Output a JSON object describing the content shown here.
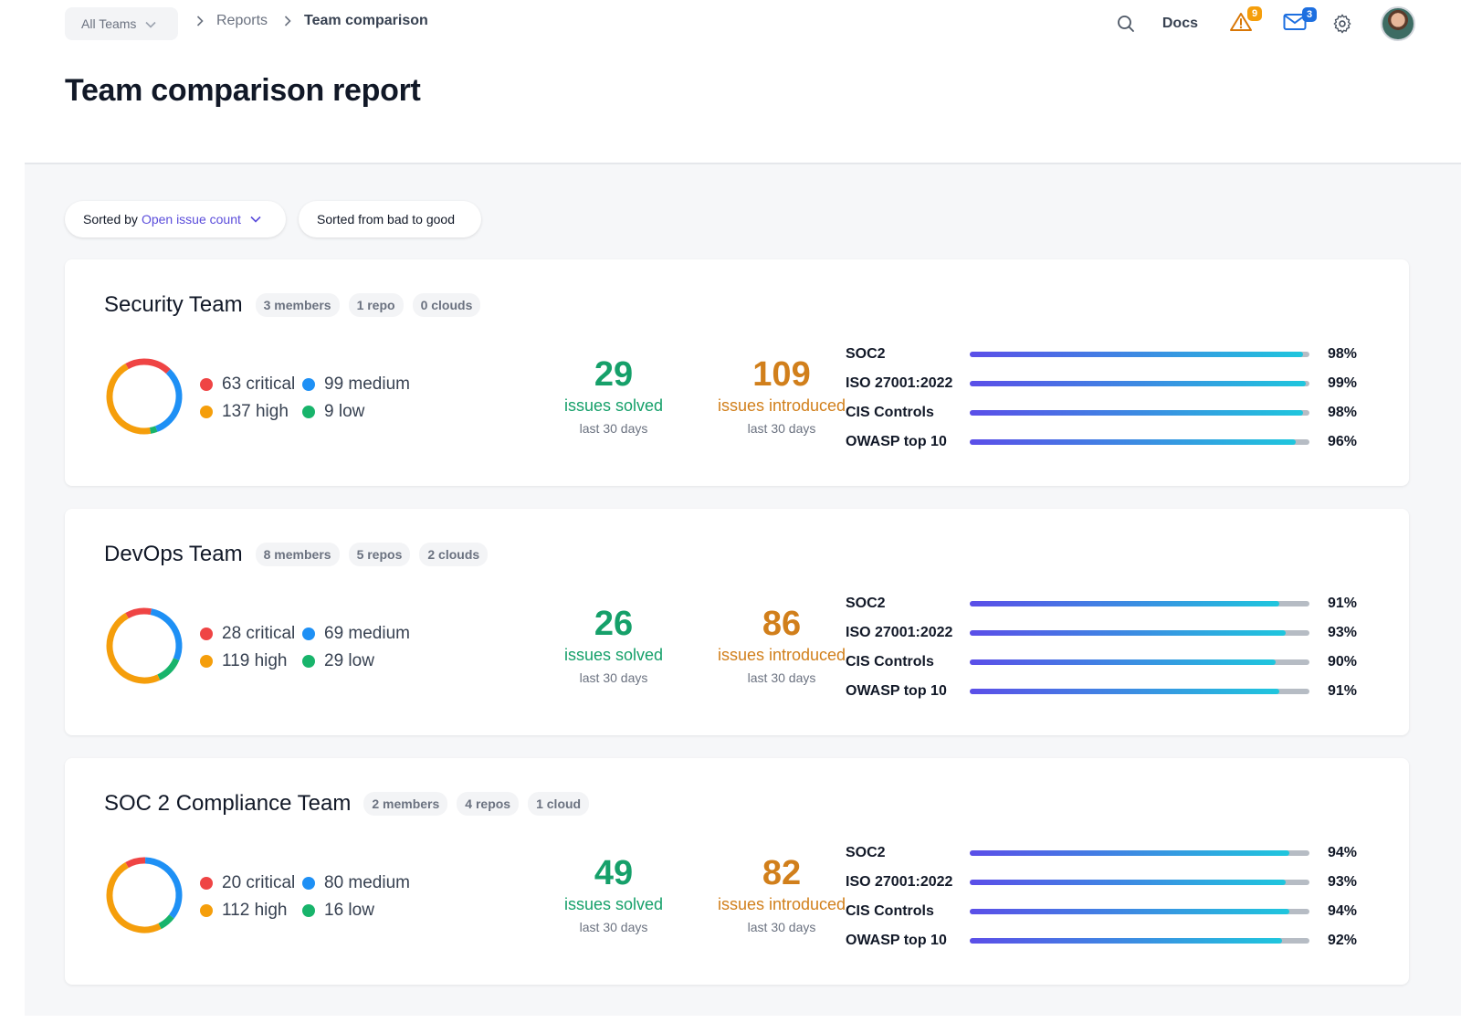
{
  "header": {
    "team_selector": "All Teams",
    "breadcrumbs": [
      "Reports",
      "Team comparison"
    ],
    "docs_label": "Docs",
    "alerts_count": "9",
    "messages_count": "3"
  },
  "page": {
    "title": "Team comparison report"
  },
  "controls": {
    "sort_prefix": "Sorted by",
    "sort_value": "Open issue count",
    "order_label": "Sorted from bad to good"
  },
  "colors": {
    "critical": "#ef4444",
    "high": "#f59e0b",
    "medium": "#1e90f5",
    "low": "#18b46b",
    "solved": "#16a06a",
    "introduced": "#d17f1b",
    "accent": "#5b4ddb"
  },
  "teams": [
    {
      "name": "Security Team",
      "chips": [
        "3 members",
        "1 repo",
        "0 clouds"
      ],
      "critical_label": "63 critical",
      "medium_label": "99 medium",
      "high_label": "137 high",
      "low_label": "9 low",
      "counts": {
        "critical": 63,
        "medium": 99,
        "high": 137,
        "low": 9
      },
      "solved": "29",
      "solved_label": "issues solved",
      "solved_sub": "last 30 days",
      "introduced": "109",
      "introduced_label": "issues introduced",
      "introduced_sub": "last 30 days",
      "compliance": [
        {
          "name": "SOC2",
          "pct": "98%",
          "value": 98
        },
        {
          "name": "ISO 27001:2022",
          "pct": "99%",
          "value": 99
        },
        {
          "name": "CIS Controls",
          "pct": "98%",
          "value": 98
        },
        {
          "name": "OWASP top 10",
          "pct": "96%",
          "value": 96
        }
      ]
    },
    {
      "name": "DevOps Team",
      "chips": [
        "8 members",
        "5 repos",
        "2 clouds"
      ],
      "critical_label": "28 critical",
      "medium_label": "69 medium",
      "high_label": "119 high",
      "low_label": "29 low",
      "counts": {
        "critical": 28,
        "medium": 69,
        "high": 119,
        "low": 29
      },
      "solved": "26",
      "solved_label": "issues solved",
      "solved_sub": "last 30 days",
      "introduced": "86",
      "introduced_label": "issues introduced",
      "introduced_sub": "last 30 days",
      "compliance": [
        {
          "name": "SOC2",
          "pct": "91%",
          "value": 91
        },
        {
          "name": "ISO 27001:2022",
          "pct": "93%",
          "value": 93
        },
        {
          "name": "CIS Controls",
          "pct": "90%",
          "value": 90
        },
        {
          "name": "OWASP top 10",
          "pct": "91%",
          "value": 91
        }
      ]
    },
    {
      "name": "SOC 2 Compliance Team",
      "chips": [
        "2 members",
        "4 repos",
        "1 cloud"
      ],
      "critical_label": "20 critical",
      "medium_label": "80 medium",
      "high_label": "112 high",
      "low_label": "16 low",
      "counts": {
        "critical": 20,
        "medium": 80,
        "high": 112,
        "low": 16
      },
      "solved": "49",
      "solved_label": "issues solved",
      "solved_sub": "last 30 days",
      "introduced": "82",
      "introduced_label": "issues introduced",
      "introduced_sub": "last 30 days",
      "compliance": [
        {
          "name": "SOC2",
          "pct": "94%",
          "value": 94
        },
        {
          "name": "ISO 27001:2022",
          "pct": "93%",
          "value": 93
        },
        {
          "name": "CIS Controls",
          "pct": "94%",
          "value": 94
        },
        {
          "name": "OWASP top 10",
          "pct": "92%",
          "value": 92
        }
      ]
    }
  ]
}
